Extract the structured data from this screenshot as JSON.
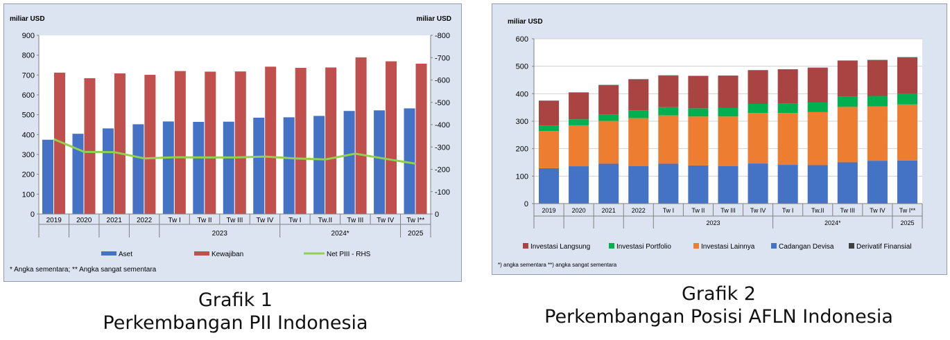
{
  "chart_data": [
    {
      "type": "bar",
      "title": "Grafik 1",
      "subtitle": "Perkembangan PII Indonesia",
      "ylabel_left": "miliar USD",
      "ylabel_right": "miliar USD",
      "ylim_left": [
        0,
        900
      ],
      "ylim_right": [
        0,
        -800
      ],
      "yticks_left": [
        "0",
        "100",
        "200",
        "300",
        "400",
        "500",
        "600",
        "700",
        "800",
        "900"
      ],
      "yticks_right": [
        "0",
        "-100",
        "-200",
        "-300",
        "-400",
        "-500",
        "-600",
        "-700",
        "-800"
      ],
      "categories": [
        "2019",
        "2020",
        "2021",
        "2022",
        "Tw I",
        "Tw II",
        "Tw III",
        "Tw IV",
        "Tw I",
        "Tw.II",
        "Tw III",
        "Tw IV",
        "Tw I**"
      ],
      "year_groups": [
        {
          "label": "2023",
          "start": 4,
          "end": 7
        },
        {
          "label": "2024*",
          "start": 8,
          "end": 11
        },
        {
          "label": "2025",
          "start": 12,
          "end": 12
        }
      ],
      "series": [
        {
          "name": "Aset",
          "type": "bar",
          "axis": "left",
          "color": "#4472c4",
          "values": [
            374,
            404,
            431,
            452,
            466,
            464,
            465,
            485,
            487,
            494,
            519,
            522,
            532
          ]
        },
        {
          "name": "Kewajiban",
          "type": "bar",
          "axis": "left",
          "color": "#c0504d",
          "values": [
            712,
            684,
            708,
            701,
            720,
            717,
            718,
            742,
            736,
            738,
            789,
            769,
            757
          ]
        },
        {
          "name": "Net PIII - RHS",
          "type": "line",
          "axis": "right",
          "color": "#92d050",
          "values": [
            -335,
            -278,
            -277,
            -249,
            -254,
            -253,
            -253,
            -257,
            -249,
            -244,
            -270,
            -247,
            -225
          ]
        }
      ],
      "footnote": "* Angka sementara;  ** Angka sangat sementara",
      "legend_position": "bottom",
      "grid": false
    },
    {
      "type": "bar",
      "stacked": true,
      "title": "Grafik 2",
      "subtitle": "Perkembangan Posisi AFLN Indonesia",
      "ylabel": "miliar USD",
      "ylim": [
        0,
        600
      ],
      "yticks": [
        "0",
        "100",
        "200",
        "300",
        "400",
        "500",
        "600"
      ],
      "categories": [
        "2019",
        "2020",
        "2021",
        "2022",
        "Tw I",
        "Tw II",
        "Tw III",
        "Tw IV",
        "Tw I",
        "Tw.II",
        "Tw III",
        "Tw IV",
        "Tw I**"
      ],
      "year_groups": [
        {
          "label": "2023",
          "start": 4,
          "end": 7
        },
        {
          "label": "2024*",
          "start": 8,
          "end": 11
        },
        {
          "label": "2025",
          "start": 12,
          "end": 12
        }
      ],
      "series": [
        {
          "name": "Cadangan Devisa",
          "color": "#4472c4",
          "values": [
            129,
            136,
            145,
            137,
            145,
            139,
            137,
            146,
            141,
            140,
            150,
            156,
            157
          ]
        },
        {
          "name": "Investasi Lainnya",
          "color": "#ed7d31",
          "values": [
            135,
            149,
            156,
            174,
            176,
            178,
            180,
            184,
            189,
            193,
            202,
            198,
            204
          ]
        },
        {
          "name": "Investasi Portfolio",
          "color": "#00b050",
          "values": [
            20,
            22,
            24,
            29,
            30,
            30,
            31,
            33,
            34,
            35,
            37,
            38,
            38
          ]
        },
        {
          "name": "Investasi Langsung",
          "color": "#a94442",
          "values": [
            90,
            97,
            106,
            112,
            115,
            117,
            117,
            122,
            124,
            126,
            131,
            130,
            133
          ]
        },
        {
          "name": "Derivatif Finansial",
          "color": "#404040",
          "values": [
            1,
            1,
            1,
            1,
            1,
            1,
            1,
            1,
            1,
            1,
            1,
            1,
            1
          ]
        }
      ],
      "legend_order": [
        "Investasi Langsung",
        "Investasi Portfolio",
        "Investasi Lainnya",
        "Cadangan Devisa",
        "Derivatif Finansial"
      ],
      "footnote": "*) angka sementara  **) angka sangat sementara",
      "legend_position": "bottom",
      "grid": true
    }
  ]
}
